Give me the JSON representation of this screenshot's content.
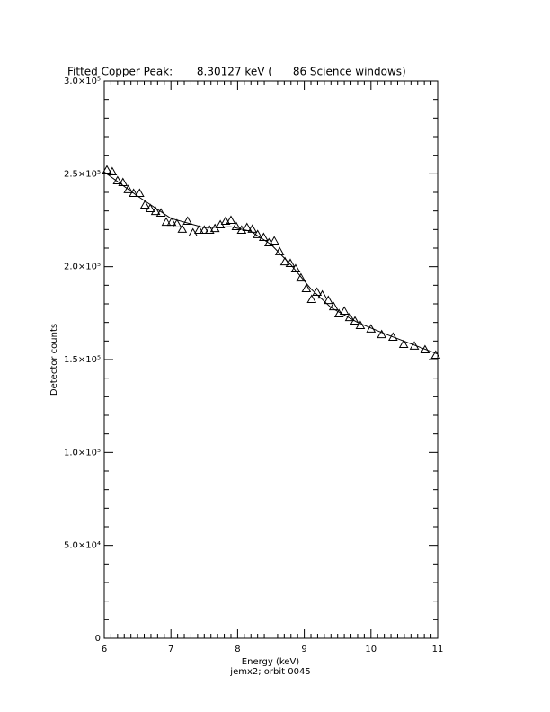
{
  "chart_data": {
    "type": "scatter",
    "title": "Fitted Copper Peak:       8.30127 keV (      86 Science windows)",
    "x_label": "Energy (keV)",
    "subtitle": "jemx2; orbit 0045",
    "y_label": "Detector counts",
    "xlim": [
      6,
      11
    ],
    "xticks": [
      6,
      7,
      8,
      9,
      10,
      11
    ],
    "x_minor_per_major": 10,
    "ylim": [
      0,
      300000
    ],
    "yticks": [
      0,
      {
        "value": 50000,
        "label": "5.0×10⁴"
      },
      {
        "value": 100000,
        "label": "1.0×10⁵"
      },
      {
        "value": 150000,
        "label": "1.5×10⁵"
      },
      {
        "value": 200000,
        "label": "2.0×10⁵"
      },
      {
        "value": 250000,
        "label": "2.5×10⁵"
      },
      {
        "value": 300000,
        "label": "3.0×10⁵"
      }
    ],
    "y_minor_per_major": 5,
    "color": "#000000",
    "series": [
      {
        "style": "triangle",
        "x": [
          6.04,
          6.12,
          6.2,
          6.28,
          6.36,
          6.44,
          6.53,
          6.61,
          6.69,
          6.77,
          6.85,
          6.93,
          7.01,
          7.09,
          7.17,
          7.25,
          7.33,
          7.42,
          7.5,
          7.58,
          7.66,
          7.74,
          7.82,
          7.9,
          7.98,
          8.06,
          8.14,
          8.22,
          8.3,
          8.39,
          8.47,
          8.55,
          8.63,
          8.71,
          8.79,
          8.87,
          8.95,
          9.03,
          9.11,
          9.19,
          9.27,
          9.36,
          9.44,
          9.52,
          9.6,
          9.68,
          9.76,
          9.84,
          10.0,
          10.16,
          10.33,
          10.49,
          10.65,
          10.81,
          10.97
        ],
        "values": [
          252100,
          251100,
          246300,
          245300,
          241500,
          239500,
          239500,
          233200,
          231300,
          229800,
          228900,
          224000,
          224000,
          223100,
          220200,
          224500,
          218200,
          219700,
          219700,
          219700,
          220600,
          222600,
          224500,
          225000,
          221600,
          219700,
          221100,
          220200,
          217300,
          215800,
          212900,
          213900,
          208100,
          202700,
          201800,
          198900,
          194000,
          188200,
          182400,
          186300,
          184800,
          181900,
          178500,
          174700,
          176100,
          172700,
          170800,
          168400,
          166500,
          163500,
          162100,
          158200,
          157300,
          155300,
          152400
        ]
      },
      {
        "style": "line",
        "x": [
          6.0,
          6.5,
          7.0,
          7.5,
          7.9,
          8.2,
          8.5,
          8.8,
          9.1,
          9.4,
          9.8,
          10.2,
          10.6,
          11.0
        ],
        "values": [
          251000,
          238000,
          226000,
          221000,
          221500,
          219000,
          212000,
          201000,
          188000,
          178000,
          170000,
          164000,
          158500,
          153000
        ]
      }
    ]
  }
}
